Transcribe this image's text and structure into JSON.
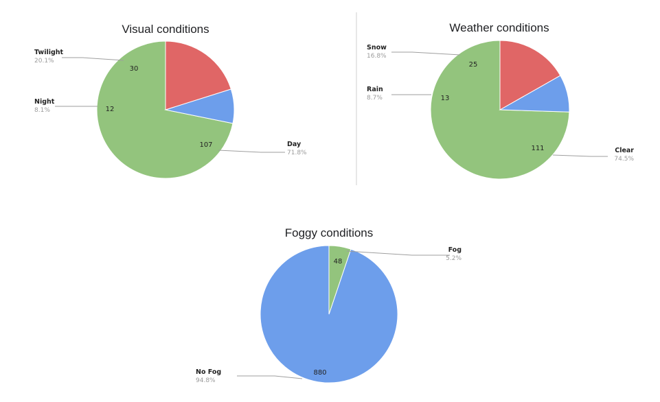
{
  "chart_data": [
    {
      "type": "pie",
      "title": "Visual conditions",
      "slices": [
        {
          "label": "Day",
          "value": 107,
          "percent": "71.8%",
          "color": "#93c47d"
        },
        {
          "label": "Night",
          "value": 12,
          "percent": "8.1%",
          "color": "#6d9eeb"
        },
        {
          "label": "Twilight",
          "value": 30,
          "percent": "20.1%",
          "color": "#e06666"
        }
      ]
    },
    {
      "type": "pie",
      "title": "Weather conditions",
      "slices": [
        {
          "label": "Clear",
          "value": 111,
          "percent": "74.5%",
          "color": "#93c47d"
        },
        {
          "label": "Rain",
          "value": 13,
          "percent": "8.7%",
          "color": "#6d9eeb"
        },
        {
          "label": "Snow",
          "value": 25,
          "percent": "16.8%",
          "color": "#e06666"
        }
      ]
    },
    {
      "type": "pie",
      "title": "Foggy conditions",
      "slices": [
        {
          "label": "No Fog",
          "value": 880,
          "percent": "94.8%",
          "color": "#6d9eeb"
        },
        {
          "label": "Fog",
          "value": 48,
          "percent": "5.2%",
          "color": "#93c47d"
        }
      ]
    }
  ]
}
